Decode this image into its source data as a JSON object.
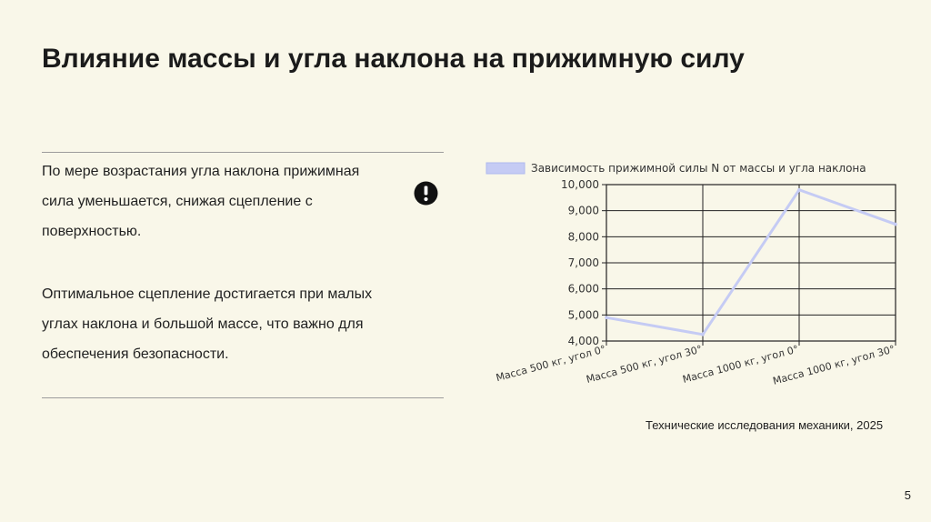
{
  "slide": {
    "title": "Влияние массы и угла наклона на прижимную силу",
    "paragraphs": [
      "По мере возрастания угла наклона прижимная сила уменьшается, снижая сцепление с поверхностью.",
      "Оптимальное сцепление достигается при малых углах наклона и большой массе, что важно для обеспечения безопасности."
    ],
    "alert_icon": "exclamation-circle-icon",
    "source": "Технические исследования механики, 2025",
    "page_number": "5"
  },
  "colors": {
    "background": "#f9f7e9",
    "series_line": "#c5cbf4",
    "rules": "#9c9c9c"
  },
  "chart_data": {
    "type": "line",
    "categories": [
      "Масса 500 кг, угол 0°",
      "Масса 500 кг, угол 30°",
      "Масса 1000 кг, угол 0°",
      "Масса 1000 кг, угол 30°"
    ],
    "series": [
      {
        "name": "Зависимость прижимной силы N от массы и угла наклона",
        "values": [
          4900,
          4250,
          9800,
          8480
        ]
      }
    ],
    "ylim": [
      4000,
      10000
    ],
    "yticks": [
      "4,000",
      "5,000",
      "6,000",
      "7,000",
      "8,000",
      "9,000",
      "10,000"
    ],
    "grid": true,
    "legend": "top"
  }
}
